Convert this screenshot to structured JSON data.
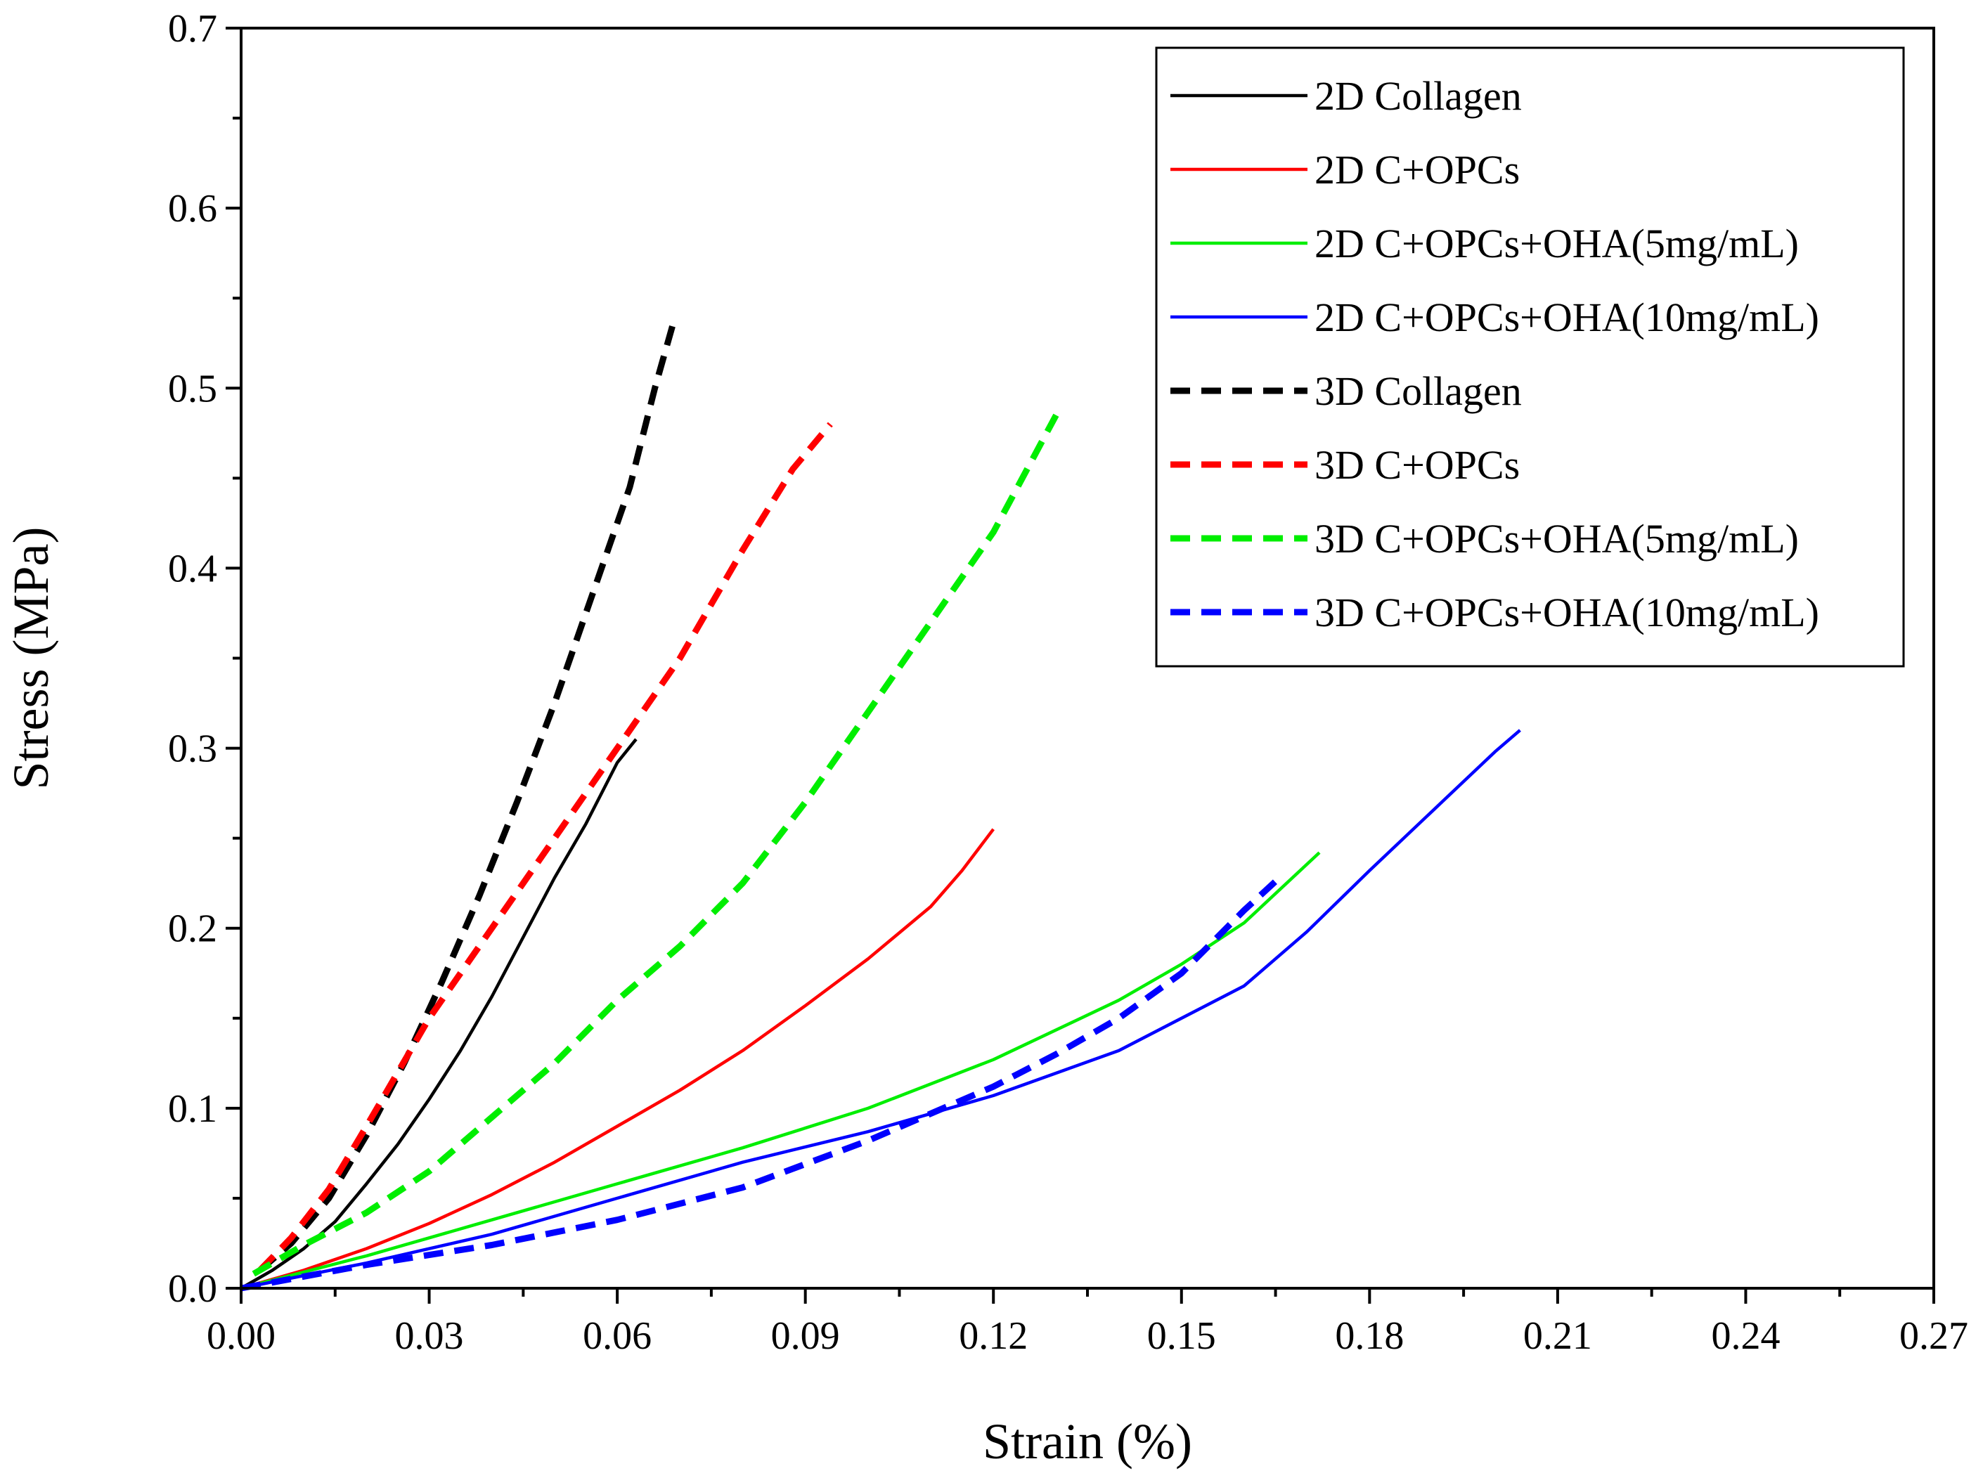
{
  "chart_data": {
    "type": "line",
    "title": "",
    "xlabel": "Strain (%)",
    "ylabel": "Stress (MPa)",
    "xlim": [
      0,
      0.27
    ],
    "ylim": [
      0,
      0.7
    ],
    "xticks": [
      0,
      0.03,
      0.06,
      0.09,
      0.12,
      0.15,
      0.18,
      0.21,
      0.24,
      0.27
    ],
    "xtick_labels": [
      "0.00",
      "0.03",
      "0.06",
      "0.09",
      "0.12",
      "0.15",
      "0.18",
      "0.21",
      "0.24",
      "0.27"
    ],
    "yticks": [
      0,
      0.1,
      0.2,
      0.3,
      0.4,
      0.5,
      0.6,
      0.7
    ],
    "ytick_labels": [
      "0.0",
      "0.1",
      "0.2",
      "0.3",
      "0.4",
      "0.5",
      "0.6",
      "0.7"
    ],
    "grid": false,
    "legend_position": "top-right",
    "series": [
      {
        "name": "2D Collagen",
        "color": "#000000",
        "dash": "solid",
        "x": [
          0,
          0.005,
          0.01,
          0.015,
          0.02,
          0.025,
          0.03,
          0.035,
          0.04,
          0.045,
          0.05,
          0.055,
          0.06,
          0.063
        ],
        "y": [
          0,
          0.01,
          0.022,
          0.037,
          0.058,
          0.08,
          0.105,
          0.132,
          0.162,
          0.195,
          0.228,
          0.258,
          0.292,
          0.305
        ]
      },
      {
        "name": "2D C+OPCs",
        "color": "#ff0000",
        "dash": "solid",
        "x": [
          0,
          0.01,
          0.02,
          0.03,
          0.04,
          0.05,
          0.06,
          0.07,
          0.08,
          0.09,
          0.1,
          0.11,
          0.115,
          0.12
        ],
        "y": [
          0,
          0.01,
          0.022,
          0.036,
          0.052,
          0.07,
          0.09,
          0.11,
          0.132,
          0.157,
          0.183,
          0.212,
          0.232,
          0.255
        ]
      },
      {
        "name": "2D C+OPCs+OHA(5mg/mL)",
        "color": "#00ee00",
        "dash": "solid",
        "x": [
          0,
          0.02,
          0.04,
          0.06,
          0.08,
          0.1,
          0.12,
          0.14,
          0.15,
          0.16,
          0.172
        ],
        "y": [
          0,
          0.018,
          0.038,
          0.058,
          0.078,
          0.1,
          0.127,
          0.16,
          0.18,
          0.203,
          0.242
        ]
      },
      {
        "name": "2D C+OPCs+OHA(10mg/mL)",
        "color": "#0000ff",
        "dash": "solid",
        "x": [
          0,
          0.02,
          0.04,
          0.06,
          0.08,
          0.1,
          0.12,
          0.14,
          0.16,
          0.17,
          0.18,
          0.19,
          0.2,
          0.204
        ],
        "y": [
          0,
          0.014,
          0.03,
          0.05,
          0.07,
          0.087,
          0.107,
          0.132,
          0.168,
          0.198,
          0.232,
          0.265,
          0.298,
          0.31
        ]
      },
      {
        "name": "3D Collagen",
        "color": "#000000",
        "dash": "dashed",
        "x": [
          0.003,
          0.008,
          0.014,
          0.02,
          0.026,
          0.032,
          0.038,
          0.044,
          0.05,
          0.056,
          0.062,
          0.066,
          0.069
        ],
        "y": [
          0.01,
          0.025,
          0.05,
          0.085,
          0.125,
          0.17,
          0.218,
          0.27,
          0.325,
          0.385,
          0.445,
          0.5,
          0.537
        ]
      },
      {
        "name": "3D C+OPCs",
        "color": "#ff0000",
        "dash": "dashed",
        "x": [
          0.003,
          0.008,
          0.014,
          0.02,
          0.03,
          0.04,
          0.05,
          0.06,
          0.07,
          0.08,
          0.088,
          0.094
        ],
        "y": [
          0.01,
          0.028,
          0.055,
          0.09,
          0.15,
          0.2,
          0.25,
          0.3,
          0.35,
          0.41,
          0.455,
          0.48
        ]
      },
      {
        "name": "3D C+OPCs+OHA(5mg/mL)",
        "color": "#00ee00",
        "dash": "dashed",
        "x": [
          0.002,
          0.01,
          0.02,
          0.03,
          0.04,
          0.05,
          0.06,
          0.07,
          0.08,
          0.09,
          0.1,
          0.11,
          0.12,
          0.13
        ],
        "y": [
          0.008,
          0.024,
          0.042,
          0.065,
          0.095,
          0.125,
          0.16,
          0.19,
          0.225,
          0.27,
          0.32,
          0.37,
          0.42,
          0.485
        ]
      },
      {
        "name": "3D C+OPCs+OHA(10mg/mL)",
        "color": "#0000ff",
        "dash": "dashed",
        "x": [
          0,
          0.02,
          0.04,
          0.06,
          0.08,
          0.1,
          0.12,
          0.13,
          0.14,
          0.15,
          0.16,
          0.165
        ],
        "y": [
          0,
          0.013,
          0.024,
          0.038,
          0.056,
          0.082,
          0.112,
          0.13,
          0.15,
          0.175,
          0.21,
          0.226
        ]
      }
    ]
  }
}
